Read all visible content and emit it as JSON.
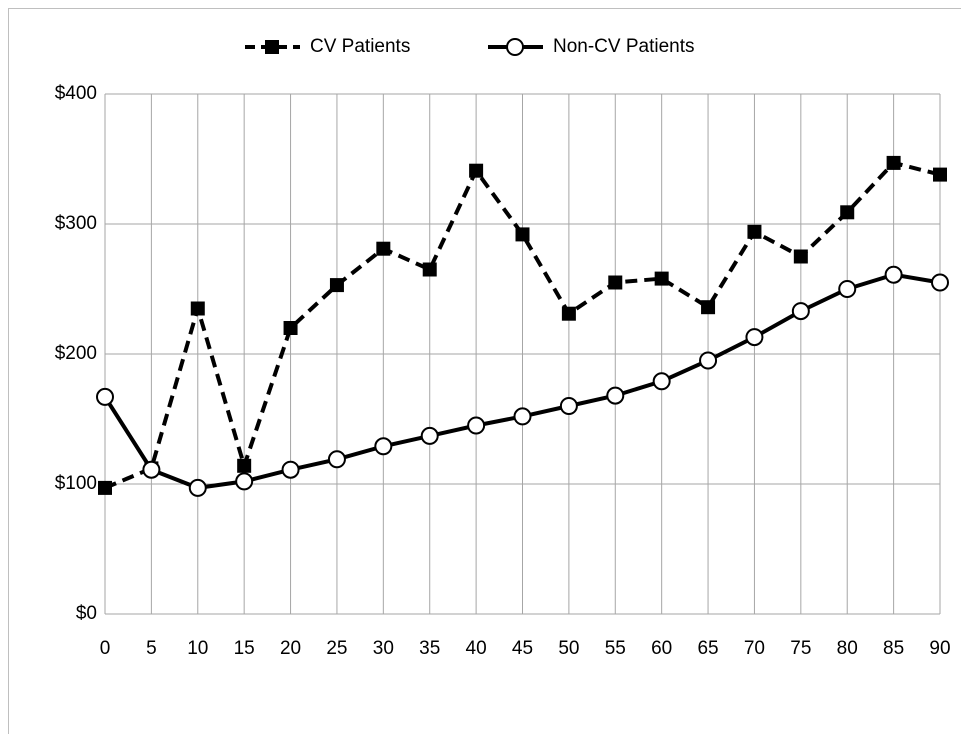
{
  "chart_data": {
    "type": "line",
    "x": [
      0,
      5,
      10,
      15,
      20,
      25,
      30,
      35,
      40,
      45,
      50,
      55,
      60,
      65,
      70,
      75,
      80,
      85,
      90
    ],
    "series": [
      {
        "name": "CV Patients",
        "color": "#000000",
        "line_style": "dashed",
        "marker": "square",
        "values": [
          97,
          112,
          235,
          114,
          220,
          253,
          281,
          265,
          341,
          292,
          231,
          255,
          258,
          236,
          294,
          275,
          309,
          347,
          338
        ]
      },
      {
        "name": "Non-CV Patients",
        "color": "#000000",
        "line_style": "solid",
        "marker": "circle",
        "values": [
          167,
          111,
          97,
          102,
          111,
          119,
          129,
          137,
          145,
          152,
          160,
          168,
          179,
          195,
          213,
          233,
          250,
          261,
          255
        ]
      }
    ],
    "xlim": [
      0,
      90
    ],
    "xticks": [
      0,
      5,
      10,
      15,
      20,
      25,
      30,
      35,
      40,
      45,
      50,
      55,
      60,
      65,
      70,
      75,
      80,
      85,
      90
    ],
    "ylim": [
      0,
      400
    ],
    "yticks": [
      {
        "value": 0,
        "label": "$0"
      },
      {
        "value": 100,
        "label": "$100"
      },
      {
        "value": 200,
        "label": "$200"
      },
      {
        "value": 300,
        "label": "$300"
      },
      {
        "value": 400,
        "label": "$400"
      }
    ],
    "grid": true,
    "legend": "top"
  }
}
